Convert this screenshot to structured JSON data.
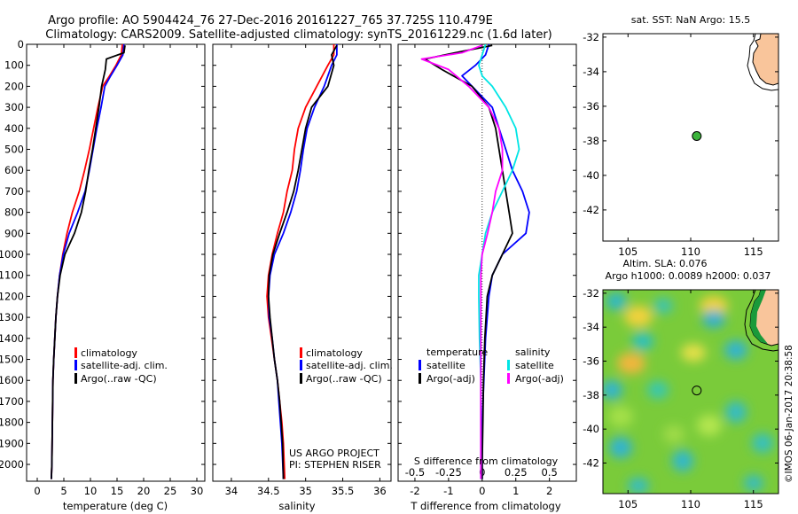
{
  "title_line1": "Argo profile: AO 5904424_76 27-Dec-2016 20161227_765 37.725S 110.479E",
  "title_line2": "Climatology: CARS2009. Satellite-adjusted climatology: synTS_20161229.nc (1.6d later)",
  "colors": {
    "climatology": "#ff0000",
    "satellite": "#0000ff",
    "argo": "#000000",
    "sat_salinity": "#00e5e5",
    "argo_salinity": "#ff00ff",
    "land": "#f9c59b"
  },
  "chart_data": [
    {
      "type": "line",
      "id": "temperature",
      "xlabel": "temperature (deg C)",
      "ylabel": "",
      "xlim": [
        -2,
        31.5
      ],
      "ylim": [
        2080,
        0
      ],
      "xticks": [
        "0",
        "5",
        "10",
        "15",
        "20",
        "25",
        "30"
      ],
      "xtick_values": [
        0,
        5,
        10,
        15,
        20,
        25,
        30
      ],
      "yticks": [
        "0",
        "100",
        "200",
        "300",
        "400",
        "500",
        "600",
        "700",
        "800",
        "900",
        "1000",
        "1100",
        "1200",
        "1300",
        "1400",
        "1500",
        "1600",
        "1700",
        "1800",
        "1900",
        "2000"
      ],
      "ytick_values": [
        0,
        100,
        200,
        300,
        400,
        500,
        600,
        700,
        800,
        900,
        1000,
        1100,
        1200,
        1300,
        1400,
        1500,
        1600,
        1700,
        1800,
        1900,
        2000
      ],
      "legend": [
        "climatology",
        "satellite-adj. clim.",
        "Argo(..raw -QC)"
      ],
      "series": [
        {
          "name": "climatology",
          "color": "#ff0000",
          "x": [
            16.0,
            15.8,
            14.8,
            13.6,
            12.3,
            11.4,
            10.6,
            9.8,
            8.9,
            7.9,
            6.6,
            5.6,
            4.8,
            4.2,
            3.8,
            3.5,
            3.3,
            3.1,
            2.95,
            2.85,
            2.75,
            2.65
          ],
          "y": [
            0,
            50,
            100,
            150,
            200,
            300,
            400,
            500,
            600,
            700,
            800,
            900,
            1000,
            1100,
            1200,
            1300,
            1400,
            1500,
            1600,
            1800,
            2000,
            2070
          ]
        },
        {
          "name": "satellite-adj. clim.",
          "color": "#0000ff",
          "x": [
            16.3,
            16.1,
            15.0,
            13.8,
            12.7,
            12.0,
            11.2,
            10.5,
            9.8,
            9.0,
            7.6,
            6.0,
            4.9,
            4.2,
            3.8,
            3.5,
            3.3,
            3.1,
            2.95,
            2.85,
            2.75,
            2.65
          ],
          "y": [
            0,
            50,
            100,
            150,
            200,
            300,
            400,
            500,
            600,
            700,
            800,
            900,
            1000,
            1100,
            1200,
            1300,
            1400,
            1500,
            1600,
            1800,
            2000,
            2070
          ]
        },
        {
          "name": "Argo",
          "color": "#000000",
          "x": [
            16.5,
            16.3,
            13.0,
            12.8,
            12.1,
            11.6,
            11.0,
            10.4,
            9.7,
            9.1,
            8.3,
            7.0,
            5.2,
            4.3,
            3.8,
            3.5,
            3.3,
            3.1,
            2.95,
            2.85,
            2.75,
            2.65
          ],
          "y": [
            5,
            40,
            70,
            120,
            200,
            300,
            400,
            500,
            600,
            700,
            800,
            900,
            1000,
            1100,
            1200,
            1300,
            1400,
            1500,
            1600,
            1800,
            2000,
            2070
          ]
        }
      ]
    },
    {
      "type": "line",
      "id": "salinity",
      "xlabel": "salinity",
      "ylabel": "",
      "xlim": [
        33.75,
        36.15
      ],
      "ylim": [
        2080,
        0
      ],
      "xticks": [
        "34",
        "34.5",
        "35",
        "35.5",
        "36"
      ],
      "xtick_values": [
        34,
        34.5,
        35,
        35.5,
        36
      ],
      "legend": [
        "climatology",
        "satellite-adj. clim.",
        "Argo(..raw -QC)"
      ],
      "annotation": [
        "US ARGO PROJECT",
        "PI: STEPHEN RISER"
      ],
      "series": [
        {
          "name": "climatology",
          "color": "#ff0000",
          "x": [
            35.38,
            35.38,
            35.3,
            35.15,
            35.0,
            34.9,
            34.85,
            34.82,
            34.75,
            34.7,
            34.62,
            34.55,
            34.5,
            34.48,
            34.5,
            34.54,
            34.58,
            34.62,
            34.65,
            34.68,
            34.7,
            34.72
          ],
          "y": [
            0,
            50,
            100,
            200,
            300,
            400,
            500,
            600,
            700,
            800,
            900,
            1000,
            1100,
            1200,
            1300,
            1400,
            1500,
            1600,
            1700,
            1800,
            1900,
            2070
          ]
        },
        {
          "name": "satellite-adj. clim.",
          "color": "#0000ff",
          "x": [
            35.42,
            35.42,
            35.35,
            35.25,
            35.12,
            35.02,
            34.97,
            34.93,
            34.88,
            34.8,
            34.7,
            34.58,
            34.52,
            34.5,
            34.51,
            34.55,
            34.58,
            34.62,
            34.64,
            34.66,
            34.68,
            34.7
          ],
          "y": [
            0,
            50,
            100,
            200,
            300,
            400,
            500,
            600,
            700,
            800,
            900,
            1000,
            1100,
            1200,
            1300,
            1400,
            1500,
            1600,
            1700,
            1800,
            1900,
            2070
          ]
        },
        {
          "name": "Argo",
          "color": "#000000",
          "x": [
            35.42,
            35.35,
            35.38,
            35.3,
            35.08,
            35.0,
            34.95,
            34.9,
            34.84,
            34.75,
            34.65,
            34.56,
            34.51,
            34.5,
            34.52,
            34.55,
            34.58,
            34.62,
            34.65,
            34.67,
            34.69,
            34.7
          ],
          "y": [
            5,
            50,
            100,
            200,
            300,
            400,
            500,
            600,
            700,
            800,
            900,
            1000,
            1100,
            1200,
            1300,
            1400,
            1500,
            1600,
            1700,
            1800,
            1900,
            2070
          ]
        }
      ]
    },
    {
      "type": "line",
      "id": "differences",
      "xlabel": "T difference from climatology",
      "xlabel_top": "S difference from climatology",
      "xlim": [
        -2.5,
        2.8
      ],
      "ylim": [
        2080,
        0
      ],
      "xticks": [
        "-2",
        "-1",
        "0",
        "1",
        "2"
      ],
      "xtick_values": [
        -2,
        -1,
        0,
        1,
        2
      ],
      "s_xticks": [
        "-0.5",
        "-0.25",
        "0",
        "0.25",
        "0.5"
      ],
      "s_xtick_values": [
        -0.5,
        -0.25,
        0,
        0.25,
        0.5
      ],
      "legend_titles": [
        "temperature",
        "salinity"
      ],
      "legend": [
        "satellite",
        "Argo(-adj)",
        "satellite",
        "Argo(-adj)"
      ],
      "series": [
        {
          "name": "temperature satellite",
          "color": "#0000ff",
          "x": [
            0.2,
            0.1,
            -0.2,
            -0.6,
            -0.3,
            0.3,
            0.5,
            0.7,
            0.9,
            1.2,
            1.4,
            1.3,
            0.6,
            0.3,
            0.2,
            0.1,
            0.05,
            0.0,
            0.0,
            0.0
          ],
          "y": [
            0,
            50,
            100,
            150,
            200,
            300,
            400,
            500,
            600,
            700,
            800,
            900,
            1000,
            1100,
            1200,
            1400,
            1600,
            1800,
            2000,
            2070
          ]
        },
        {
          "name": "temperature Argo(-adj)",
          "color": "#000000",
          "x": [
            0.3,
            -0.8,
            -1.7,
            -1.2,
            -0.3,
            0.2,
            0.4,
            0.5,
            0.6,
            0.7,
            0.8,
            0.9,
            0.6,
            0.3,
            0.15,
            0.08,
            0.04,
            0.02,
            0.0,
            0.0
          ],
          "y": [
            5,
            40,
            70,
            120,
            200,
            300,
            400,
            500,
            600,
            700,
            800,
            900,
            1000,
            1100,
            1200,
            1400,
            1600,
            1800,
            2000,
            2070
          ]
        },
        {
          "name": "salinity satellite",
          "color": "#00e5e5",
          "x": [
            0.05,
            0.0,
            -0.05,
            0.0,
            0.15,
            0.35,
            0.5,
            0.55,
            0.45,
            0.3,
            0.15,
            0.05,
            0.0,
            -0.05,
            -0.05,
            -0.04,
            -0.02,
            -0.02,
            -0.02,
            -0.02
          ],
          "y": [
            0,
            50,
            100,
            150,
            200,
            300,
            400,
            500,
            600,
            700,
            800,
            900,
            1000,
            1100,
            1200,
            1400,
            1600,
            1800,
            2000,
            2070
          ]
        },
        {
          "name": "salinity Argo(-adj)",
          "color": "#ff00ff",
          "x": [
            0.0,
            -0.3,
            -0.9,
            -0.5,
            -0.2,
            0.1,
            0.25,
            0.3,
            0.3,
            0.2,
            0.15,
            0.08,
            0.0,
            -0.02,
            -0.02,
            -0.02,
            -0.02,
            -0.02,
            -0.02,
            -0.02
          ],
          "y": [
            5,
            40,
            70,
            120,
            200,
            300,
            400,
            500,
            600,
            700,
            800,
            900,
            1000,
            1100,
            1200,
            1400,
            1600,
            1800,
            2000,
            2070
          ]
        }
      ]
    },
    {
      "type": "scatter",
      "id": "sst_map",
      "title": "sat. SST: NaN Argo: 15.5",
      "xlim": [
        103,
        117
      ],
      "ylim": [
        -43.8,
        -31.8
      ],
      "xticks": [
        "105",
        "110",
        "115"
      ],
      "xtick_values": [
        105,
        110,
        115
      ],
      "yticks": [
        "-32",
        "-34",
        "-36",
        "-38",
        "-40",
        "-42"
      ],
      "ytick_values": [
        -32,
        -34,
        -36,
        -38,
        -40,
        -42
      ],
      "point": {
        "lon": 110.479,
        "lat": -37.725
      }
    },
    {
      "type": "heatmap",
      "id": "sla_map",
      "title_line1": "Altim. SLA: 0.076",
      "title_line2": "Argo h1000: 0.0089 h2000: 0.037",
      "xlim": [
        103,
        117
      ],
      "ylim": [
        -43.8,
        -31.8
      ],
      "xticks": [
        "105",
        "110",
        "115"
      ],
      "xtick_values": [
        105,
        110,
        115
      ],
      "yticks": [
        "-32",
        "-34",
        "-36",
        "-38",
        "-40",
        "-42"
      ],
      "ytick_values": [
        -32,
        -34,
        -36,
        -38,
        -40,
        -42
      ],
      "point": {
        "lon": 110.479,
        "lat": -37.725
      }
    }
  ],
  "credit": "©IMOS 06-Jan-2017 20:38:58"
}
